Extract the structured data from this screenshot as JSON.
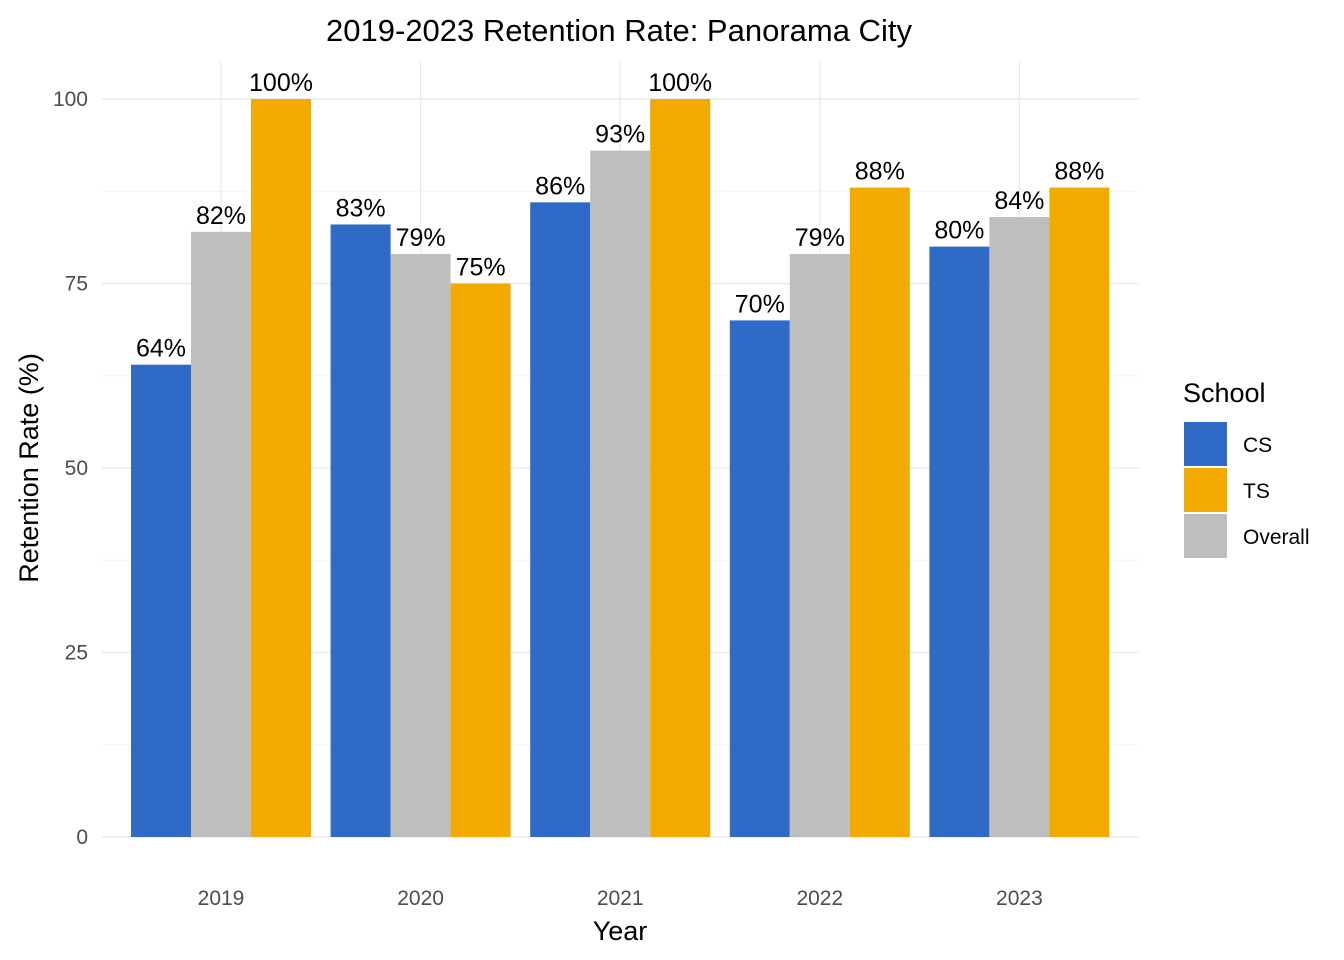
{
  "chart_data": {
    "type": "bar",
    "title": "2019-2023 Retention Rate: Panorama City",
    "xlabel": "Year",
    "ylabel": "Retention Rate (%)",
    "categories": [
      "2019",
      "2020",
      "2021",
      "2022",
      "2023"
    ],
    "ylim": [
      0,
      100
    ],
    "yticks": [
      0,
      25,
      50,
      75,
      100
    ],
    "grid": true,
    "legend": {
      "title": "School",
      "position": "right"
    },
    "bar_order": [
      "CS",
      "Overall",
      "TS"
    ],
    "series": [
      {
        "name": "CS",
        "color": "#2e6ac6",
        "values": [
          64,
          83,
          86,
          70,
          80
        ],
        "labels": [
          "64%",
          "83%",
          "86%",
          "70%",
          "80%"
        ]
      },
      {
        "name": "TS",
        "color": "#f2a900",
        "values": [
          100,
          75,
          100,
          88,
          88
        ],
        "labels": [
          "100%",
          "75%",
          "100%",
          "88%",
          "88%"
        ]
      },
      {
        "name": "Overall",
        "color": "#bebebe",
        "values": [
          82,
          79,
          93,
          79,
          84
        ],
        "labels": [
          "82%",
          "79%",
          "93%",
          "79%",
          "84%"
        ]
      }
    ]
  }
}
